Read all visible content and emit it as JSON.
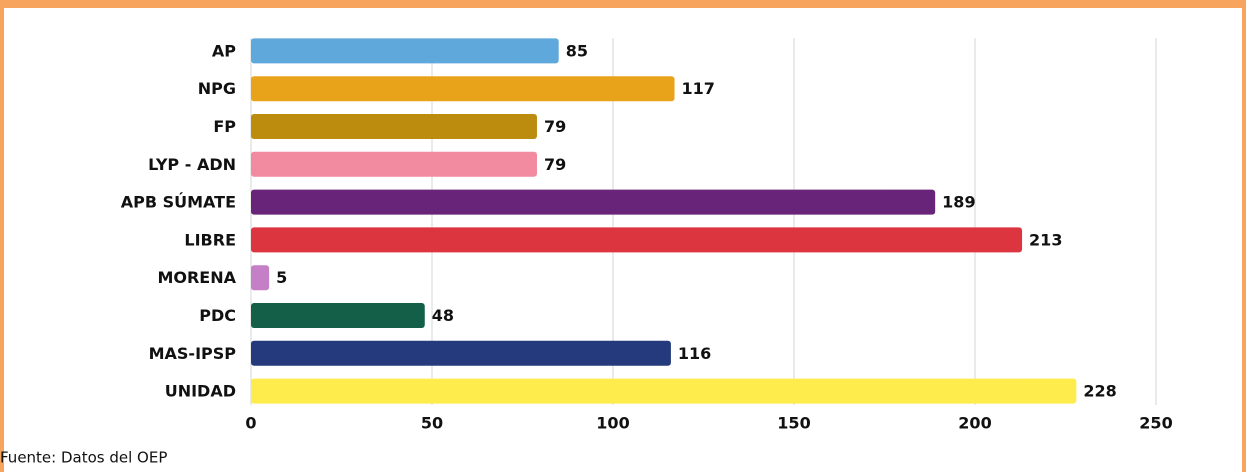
{
  "chart_data": {
    "type": "bar",
    "orientation": "horizontal",
    "categories": [
      "AP",
      "NPG",
      "FP",
      "LYP - ADN",
      "APB SÚMATE",
      "LIBRE",
      "MORENA",
      "PDC",
      "MAS-IPSP",
      "UNIDAD"
    ],
    "values": [
      85,
      117,
      79,
      79,
      189,
      213,
      5,
      48,
      116,
      228
    ],
    "colors": [
      "#5fa8db",
      "#e9a31b",
      "#bb8c0e",
      "#f28aa0",
      "#672479",
      "#dc3540",
      "#c47fc6",
      "#135f47",
      "#243a7c",
      "#fdec4b"
    ],
    "xlim": [
      0,
      250
    ],
    "xticks": [
      0,
      50,
      100,
      150,
      200,
      250
    ],
    "grid": true,
    "source": "Fuente: Datos del OEP"
  }
}
